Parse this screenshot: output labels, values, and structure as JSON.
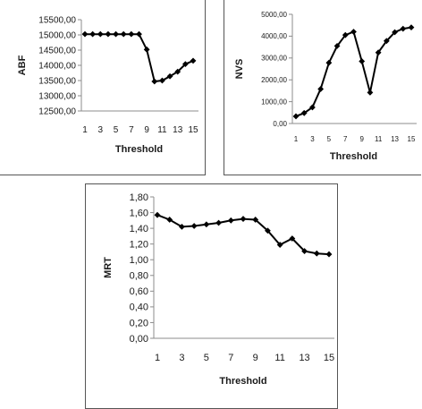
{
  "chart_data": [
    {
      "type": "line",
      "ylabel": "ABF",
      "xlabel": "Threshold",
      "x": [
        1,
        2,
        3,
        4,
        5,
        6,
        7,
        8,
        9,
        10,
        11,
        12,
        13,
        14,
        15
      ],
      "x_tick_labels": [
        "1",
        "3",
        "5",
        "7",
        "9",
        "11",
        "13",
        "15"
      ],
      "values": [
        15025,
        15025,
        15025,
        15025,
        15025,
        15025,
        15025,
        15025,
        14520,
        13470,
        13500,
        13640,
        13790,
        14040,
        14150
      ],
      "ylim": [
        12500,
        15500
      ],
      "y_tick_labels": [
        "12500,00",
        "13000,00",
        "13500,00",
        "14000,00",
        "14500,00",
        "15000,00",
        "15500,00"
      ],
      "grid": false,
      "legend": "none"
    },
    {
      "type": "line",
      "ylabel": "NVS",
      "xlabel": "Threshold",
      "x": [
        1,
        2,
        3,
        4,
        5,
        6,
        7,
        8,
        9,
        10,
        11,
        12,
        13,
        14,
        15
      ],
      "x_tick_labels": [
        "1",
        "3",
        "5",
        "7",
        "9",
        "11",
        "13",
        "15"
      ],
      "values": [
        330,
        480,
        740,
        1580,
        2780,
        3550,
        4050,
        4200,
        2850,
        1420,
        3250,
        3780,
        4180,
        4340,
        4400
      ],
      "ylim": [
        0,
        5000
      ],
      "y_tick_labels": [
        "0,00",
        "1000,00",
        "2000,00",
        "3000,00",
        "4000,00",
        "5000,00"
      ],
      "grid": false,
      "legend": "none"
    },
    {
      "type": "line",
      "ylabel": "MRT",
      "xlabel": "Threshold",
      "x": [
        1,
        2,
        3,
        4,
        5,
        6,
        7,
        8,
        9,
        10,
        11,
        12,
        13,
        14,
        15
      ],
      "x_tick_labels": [
        "1",
        "3",
        "5",
        "7",
        "9",
        "11",
        "13",
        "15"
      ],
      "values": [
        1.57,
        1.51,
        1.42,
        1.43,
        1.45,
        1.47,
        1.5,
        1.52,
        1.51,
        1.37,
        1.19,
        1.27,
        1.11,
        1.08,
        1.07
      ],
      "ylim": [
        0,
        1.8
      ],
      "y_tick_labels": [
        "0,00",
        "0,20",
        "0,40",
        "0,60",
        "0,80",
        "1,00",
        "1,20",
        "1,40",
        "1,60",
        "1,80"
      ],
      "grid": false,
      "legend": "none"
    }
  ],
  "colors": {
    "series": "#000000",
    "axis": "#8c8c8c",
    "border": "#555555"
  }
}
